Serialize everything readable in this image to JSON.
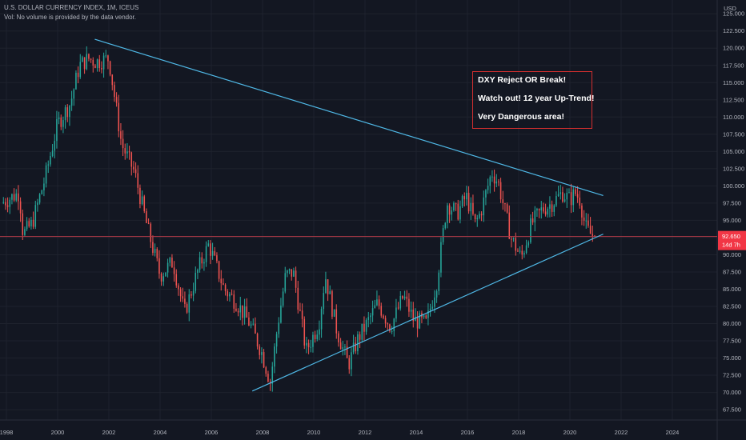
{
  "header": {
    "title": "U.S. DOLLAR CURRENCY INDEX, 1M, ICEUS",
    "volume_note": "Vol: No volume is provided by the data vendor."
  },
  "annotation": {
    "lines": [
      "DXY Reject OR Break!",
      "Watch out! 12 year Up-Trend!",
      "Very Dangerous area!"
    ],
    "border_color": "#d32f2f"
  },
  "colors": {
    "background": "#131722",
    "up_candle": "#26a69a",
    "down_candle": "#ef5350",
    "trendline": "#4fb8e6",
    "price_line": "#b23a48",
    "price_badge": "#f23645"
  },
  "chart_data": {
    "type": "candlestick",
    "title": "U.S. DOLLAR CURRENCY INDEX, 1M, ICEUS",
    "currency": "USD",
    "y_ticks": [
      "67.500",
      "70.000",
      "72.500",
      "75.000",
      "77.500",
      "80.000",
      "82.500",
      "85.000",
      "87.500",
      "90.000",
      "92.500",
      "95.000",
      "97.500",
      "100.000",
      "102.500",
      "105.000",
      "107.500",
      "110.000",
      "112.500",
      "115.000",
      "117.500",
      "120.000",
      "122.500",
      "125.000"
    ],
    "x_ticks": [
      "1998",
      "2000",
      "2002",
      "2004",
      "2006",
      "2008",
      "2010",
      "2012",
      "2014",
      "2016",
      "2018",
      "2020",
      "2022",
      "2024"
    ],
    "ylim": [
      66,
      127
    ],
    "xlim": [
      1997.75,
      2025.75
    ],
    "last_price": "92.650",
    "countdown": "14d 7h",
    "close_path": [
      [
        1997.8,
        97.5
      ],
      [
        1998.5,
        99.0
      ],
      [
        1998.65,
        93.0
      ],
      [
        1999.0,
        94.5
      ],
      [
        1999.5,
        101.0
      ],
      [
        2000.0,
        109.0
      ],
      [
        2000.5,
        112.0
      ],
      [
        2000.85,
        117.5
      ],
      [
        2001.2,
        118.5
      ],
      [
        2001.5,
        118.0
      ],
      [
        2002.0,
        118.5
      ],
      [
        2002.5,
        106.0
      ],
      [
        2003.0,
        102.0
      ],
      [
        2003.5,
        94.0
      ],
      [
        2004.0,
        87.0
      ],
      [
        2004.5,
        89.0
      ],
      [
        2004.95,
        81.5
      ],
      [
        2005.5,
        88.0
      ],
      [
        2005.9,
        91.5
      ],
      [
        2006.5,
        85.0
      ],
      [
        2007.0,
        83.0
      ],
      [
        2007.5,
        80.0
      ],
      [
        2007.95,
        76.0
      ],
      [
        2008.3,
        71.5
      ],
      [
        2008.6,
        80.0
      ],
      [
        2008.9,
        87.0
      ],
      [
        2009.2,
        87.5
      ],
      [
        2009.7,
        76.0
      ],
      [
        2010.2,
        80.0
      ],
      [
        2010.45,
        87.0
      ],
      [
        2010.9,
        79.0
      ],
      [
        2011.35,
        74.0
      ],
      [
        2011.75,
        78.0
      ],
      [
        2012.0,
        79.5
      ],
      [
        2012.5,
        83.0
      ],
      [
        2013.0,
        79.5
      ],
      [
        2013.5,
        84.0
      ],
      [
        2013.9,
        80.5
      ],
      [
        2014.4,
        80.0
      ],
      [
        2014.8,
        86.0
      ],
      [
        2015.2,
        97.5
      ],
      [
        2015.6,
        96.0
      ],
      [
        2015.95,
        98.5
      ],
      [
        2016.3,
        94.5
      ],
      [
        2016.5,
        96.0
      ],
      [
        2016.95,
        102.0
      ],
      [
        2017.2,
        100.5
      ],
      [
        2017.7,
        92.5
      ],
      [
        2018.1,
        89.5
      ],
      [
        2018.5,
        94.5
      ],
      [
        2018.9,
        96.5
      ],
      [
        2019.3,
        97.5
      ],
      [
        2019.7,
        99.0
      ],
      [
        2020.0,
        98.0
      ],
      [
        2020.2,
        99.0
      ],
      [
        2020.4,
        98.0
      ],
      [
        2020.6,
        94.0
      ],
      [
        2020.8,
        93.0
      ],
      [
        2021.0,
        92.65
      ]
    ],
    "trendlines": [
      [
        [
          2001.45,
          121.3
        ],
        [
          2021.3,
          98.6
        ]
      ],
      [
        [
          2007.6,
          70.2
        ],
        [
          2021.3,
          93.0
        ]
      ]
    ]
  }
}
